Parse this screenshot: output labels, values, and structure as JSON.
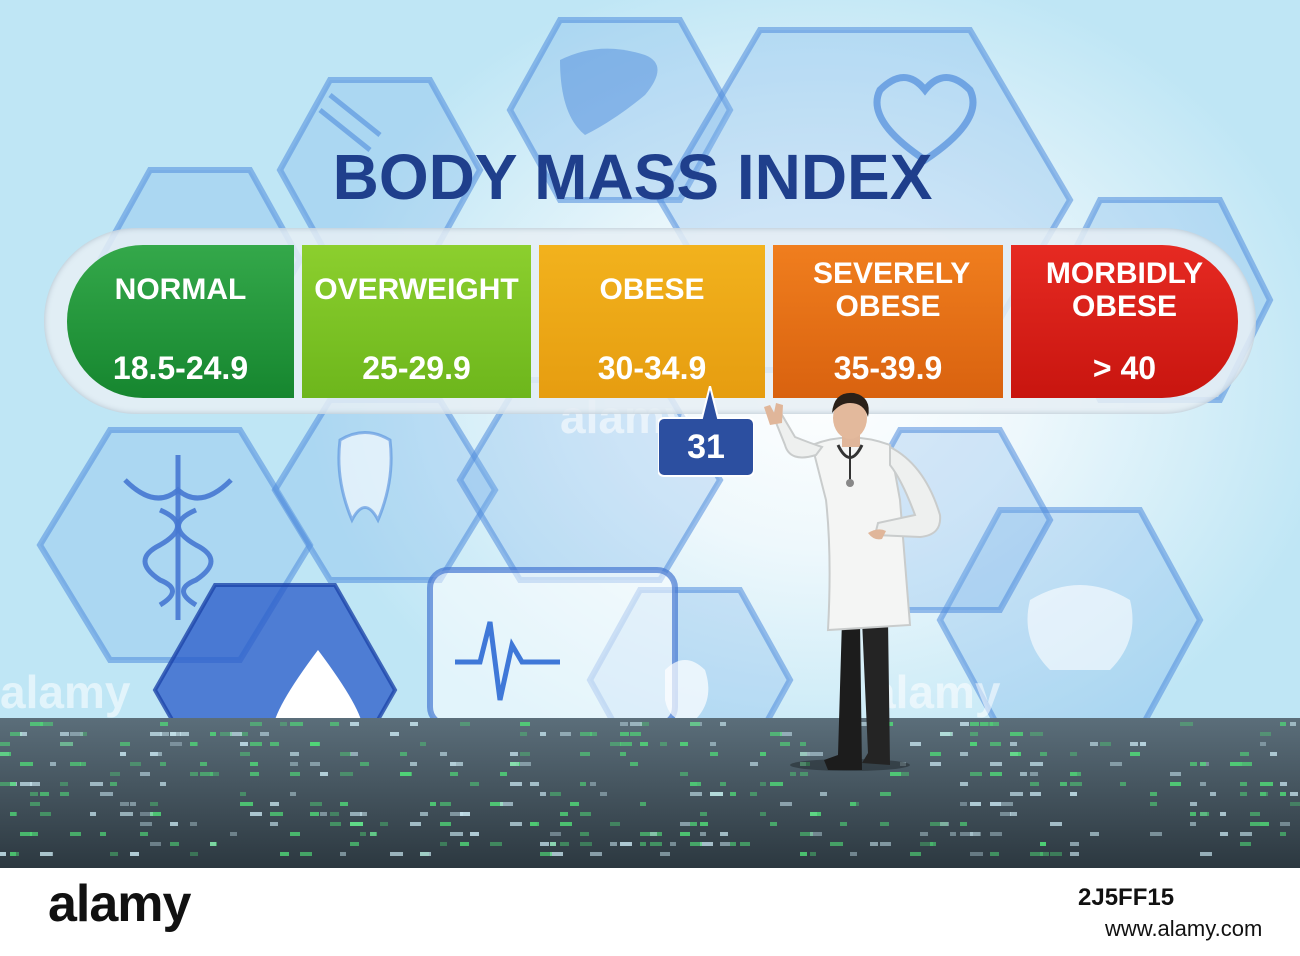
{
  "title": "BODY MASS INDEX",
  "categories": [
    {
      "label": "NORMAL",
      "range": "18.5-24.9",
      "color": "#1f9a3a"
    },
    {
      "label": "OVERWEIGHT",
      "range": "25-29.9",
      "color": "#7ec425"
    },
    {
      "label": "OBESE",
      "range": "30-34.9",
      "color": "#ecaa16"
    },
    {
      "label": "SEVERELY OBESE",
      "range": "35-39.9",
      "color": "#e87119"
    },
    {
      "label": "MORBIDLY OBESE",
      "range": "> 40",
      "color": "#d9201a"
    }
  ],
  "marker": {
    "value": "31",
    "color": "#2c4fa0"
  },
  "watermark": "alamy",
  "footer": {
    "logo": "alamy",
    "image_id": "2J5FF15",
    "url": "www.alamy.com"
  },
  "icons": [
    "dna-icon",
    "liver-icon",
    "heart-plus-icon",
    "tooth-icon",
    "caduceus-icon",
    "drop-icon",
    "ecg-icon",
    "kidney-icon",
    "bone-icon"
  ]
}
